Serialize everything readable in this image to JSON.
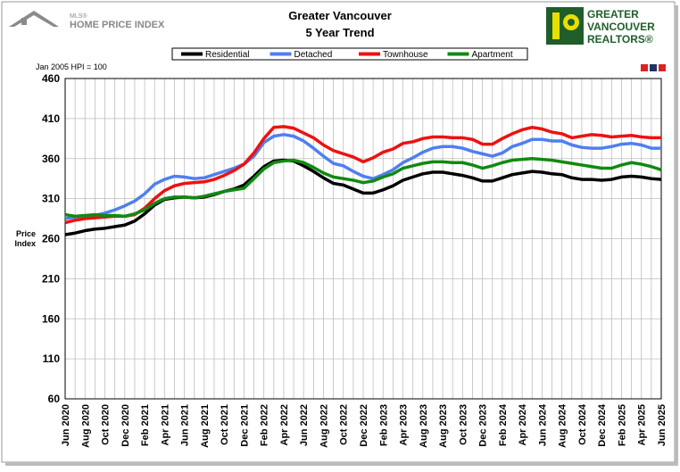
{
  "logos": {
    "mls": "MLS®",
    "hpi": "HOME PRICE INDEX",
    "realtors": [
      "GREATER",
      "VANCOUVER",
      "REALTORS®"
    ]
  },
  "chart_data": {
    "type": "line",
    "title": "Greater Vancouver",
    "subtitle": "5 Year Trend",
    "note": "Jan 2005 HPI = 100",
    "ylabel": "Price Index",
    "categories": [
      "Jun 2020",
      null,
      "Aug 2020",
      null,
      "Oct 2020",
      null,
      "Dec 2020",
      null,
      "Feb 2021",
      null,
      "Apr 2021",
      null,
      "Jun 2021",
      null,
      "Aug 2021",
      null,
      "Oct 2021",
      null,
      "Dec 2021",
      null,
      "Feb 2022",
      null,
      "Apr 2022",
      null,
      "Jun 2022",
      null,
      "Aug 2022",
      null,
      "Oct 2022",
      null,
      "Dec 2022",
      null,
      "Feb 2023",
      null,
      "Apr 2023",
      null,
      "Aug 2023",
      null,
      "Aug 2023",
      null,
      "Oct 2023",
      null,
      "Dec 2023",
      null,
      "Feb 2024",
      null,
      "Apr 2024",
      null,
      "Jun 2024",
      null,
      "Aug 2024",
      null,
      "Oct 2024",
      null,
      "Dec 2024",
      null,
      "Feb 2025",
      null,
      "Apr 2025",
      null,
      "Jun 2025"
    ],
    "series": [
      {
        "name": "Residential",
        "color": "#000000",
        "values": [
          265,
          267,
          270,
          272,
          273,
          275,
          277,
          282,
          291,
          302,
          309,
          311,
          312,
          311,
          312,
          315,
          319,
          322,
          327,
          338,
          350,
          357,
          358,
          357,
          351,
          344,
          336,
          329,
          327,
          322,
          317,
          317,
          321,
          326,
          333,
          337,
          341,
          343,
          343,
          341,
          339,
          336,
          332,
          332,
          336,
          340,
          342,
          344,
          343,
          341,
          340,
          336,
          334,
          334,
          333,
          334,
          337,
          338,
          337,
          335,
          334
        ]
      },
      {
        "name": "Detached",
        "color": "#4f7ff0",
        "values": [
          285,
          287,
          288,
          289,
          292,
          296,
          301,
          307,
          316,
          328,
          334,
          338,
          337,
          335,
          336,
          340,
          344,
          348,
          353,
          363,
          380,
          388,
          390,
          388,
          382,
          373,
          363,
          354,
          351,
          344,
          338,
          335,
          340,
          346,
          355,
          361,
          368,
          373,
          375,
          375,
          373,
          369,
          366,
          363,
          367,
          375,
          379,
          384,
          384,
          382,
          382,
          377,
          374,
          373,
          373,
          375,
          378,
          379,
          377,
          373,
          373
        ]
      },
      {
        "name": "Townhouse",
        "color": "#ee1111",
        "values": [
          280,
          283,
          285,
          286,
          287,
          288,
          288,
          290,
          298,
          310,
          320,
          326,
          329,
          330,
          331,
          334,
          339,
          345,
          353,
          367,
          385,
          399,
          400,
          398,
          392,
          386,
          377,
          370,
          366,
          362,
          356,
          361,
          368,
          372,
          379,
          381,
          385,
          387,
          387,
          386,
          386,
          384,
          378,
          378,
          385,
          391,
          396,
          399,
          397,
          393,
          391,
          386,
          388,
          390,
          389,
          387,
          388,
          389,
          387,
          386,
          386
        ]
      },
      {
        "name": "Apartment",
        "color": "#108a10",
        "values": [
          290,
          288,
          289,
          290,
          289,
          289,
          288,
          291,
          296,
          304,
          310,
          312,
          312,
          311,
          313,
          316,
          319,
          321,
          323,
          335,
          347,
          355,
          357,
          358,
          355,
          349,
          342,
          337,
          335,
          333,
          330,
          332,
          337,
          341,
          348,
          351,
          354,
          356,
          356,
          355,
          355,
          352,
          348,
          351,
          355,
          358,
          359,
          360,
          359,
          358,
          356,
          354,
          352,
          350,
          348,
          348,
          352,
          355,
          353,
          350,
          346
        ]
      }
    ],
    "ylim": [
      60,
      460
    ],
    "yticks": [
      60,
      110,
      160,
      210,
      260,
      310,
      360,
      410,
      460
    ],
    "grid": true
  }
}
